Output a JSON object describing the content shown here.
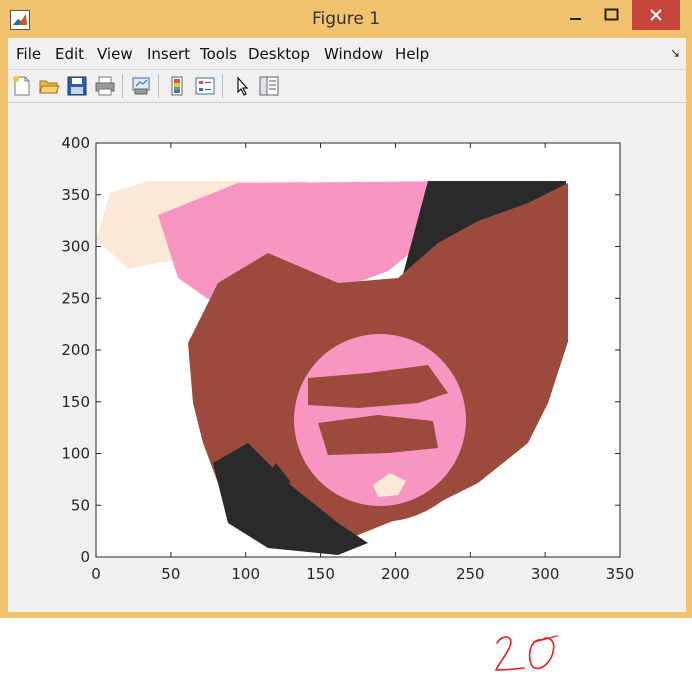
{
  "window": {
    "title": "Figure 1",
    "controls": [
      "minimize",
      "maximize",
      "close"
    ]
  },
  "menu": [
    "File",
    "Edit",
    "View",
    "Insert",
    "Tools",
    "Desktop",
    "Window",
    "Help"
  ],
  "toolbar": {
    "icons": [
      "new-figure-icon",
      "open-file-icon",
      "save-icon",
      "print-icon",
      "link-plot-icon",
      "insert-colorbar-icon",
      "insert-legend-icon",
      "edit-plot-arrow-icon",
      "property-inspector-icon"
    ]
  },
  "colors": {
    "window_frame": "#f2c26e",
    "close_button": "#c7453a",
    "light_peach": "#fce8d6",
    "pink": "#f995c3",
    "brown": "#9b4a3b",
    "dark": "#2a2a2a"
  },
  "chart_data": {
    "type": "image",
    "xticks": [
      "0",
      "50",
      "100",
      "150",
      "200",
      "250",
      "300",
      "350"
    ],
    "yticks": [
      "0",
      "50",
      "100",
      "150",
      "200",
      "250",
      "300",
      "350",
      "400"
    ],
    "xlim": [
      0,
      350
    ],
    "ylim": [
      0,
      400
    ],
    "grid": false
  },
  "annotation": {
    "text": "20",
    "color": "#e0201c"
  }
}
